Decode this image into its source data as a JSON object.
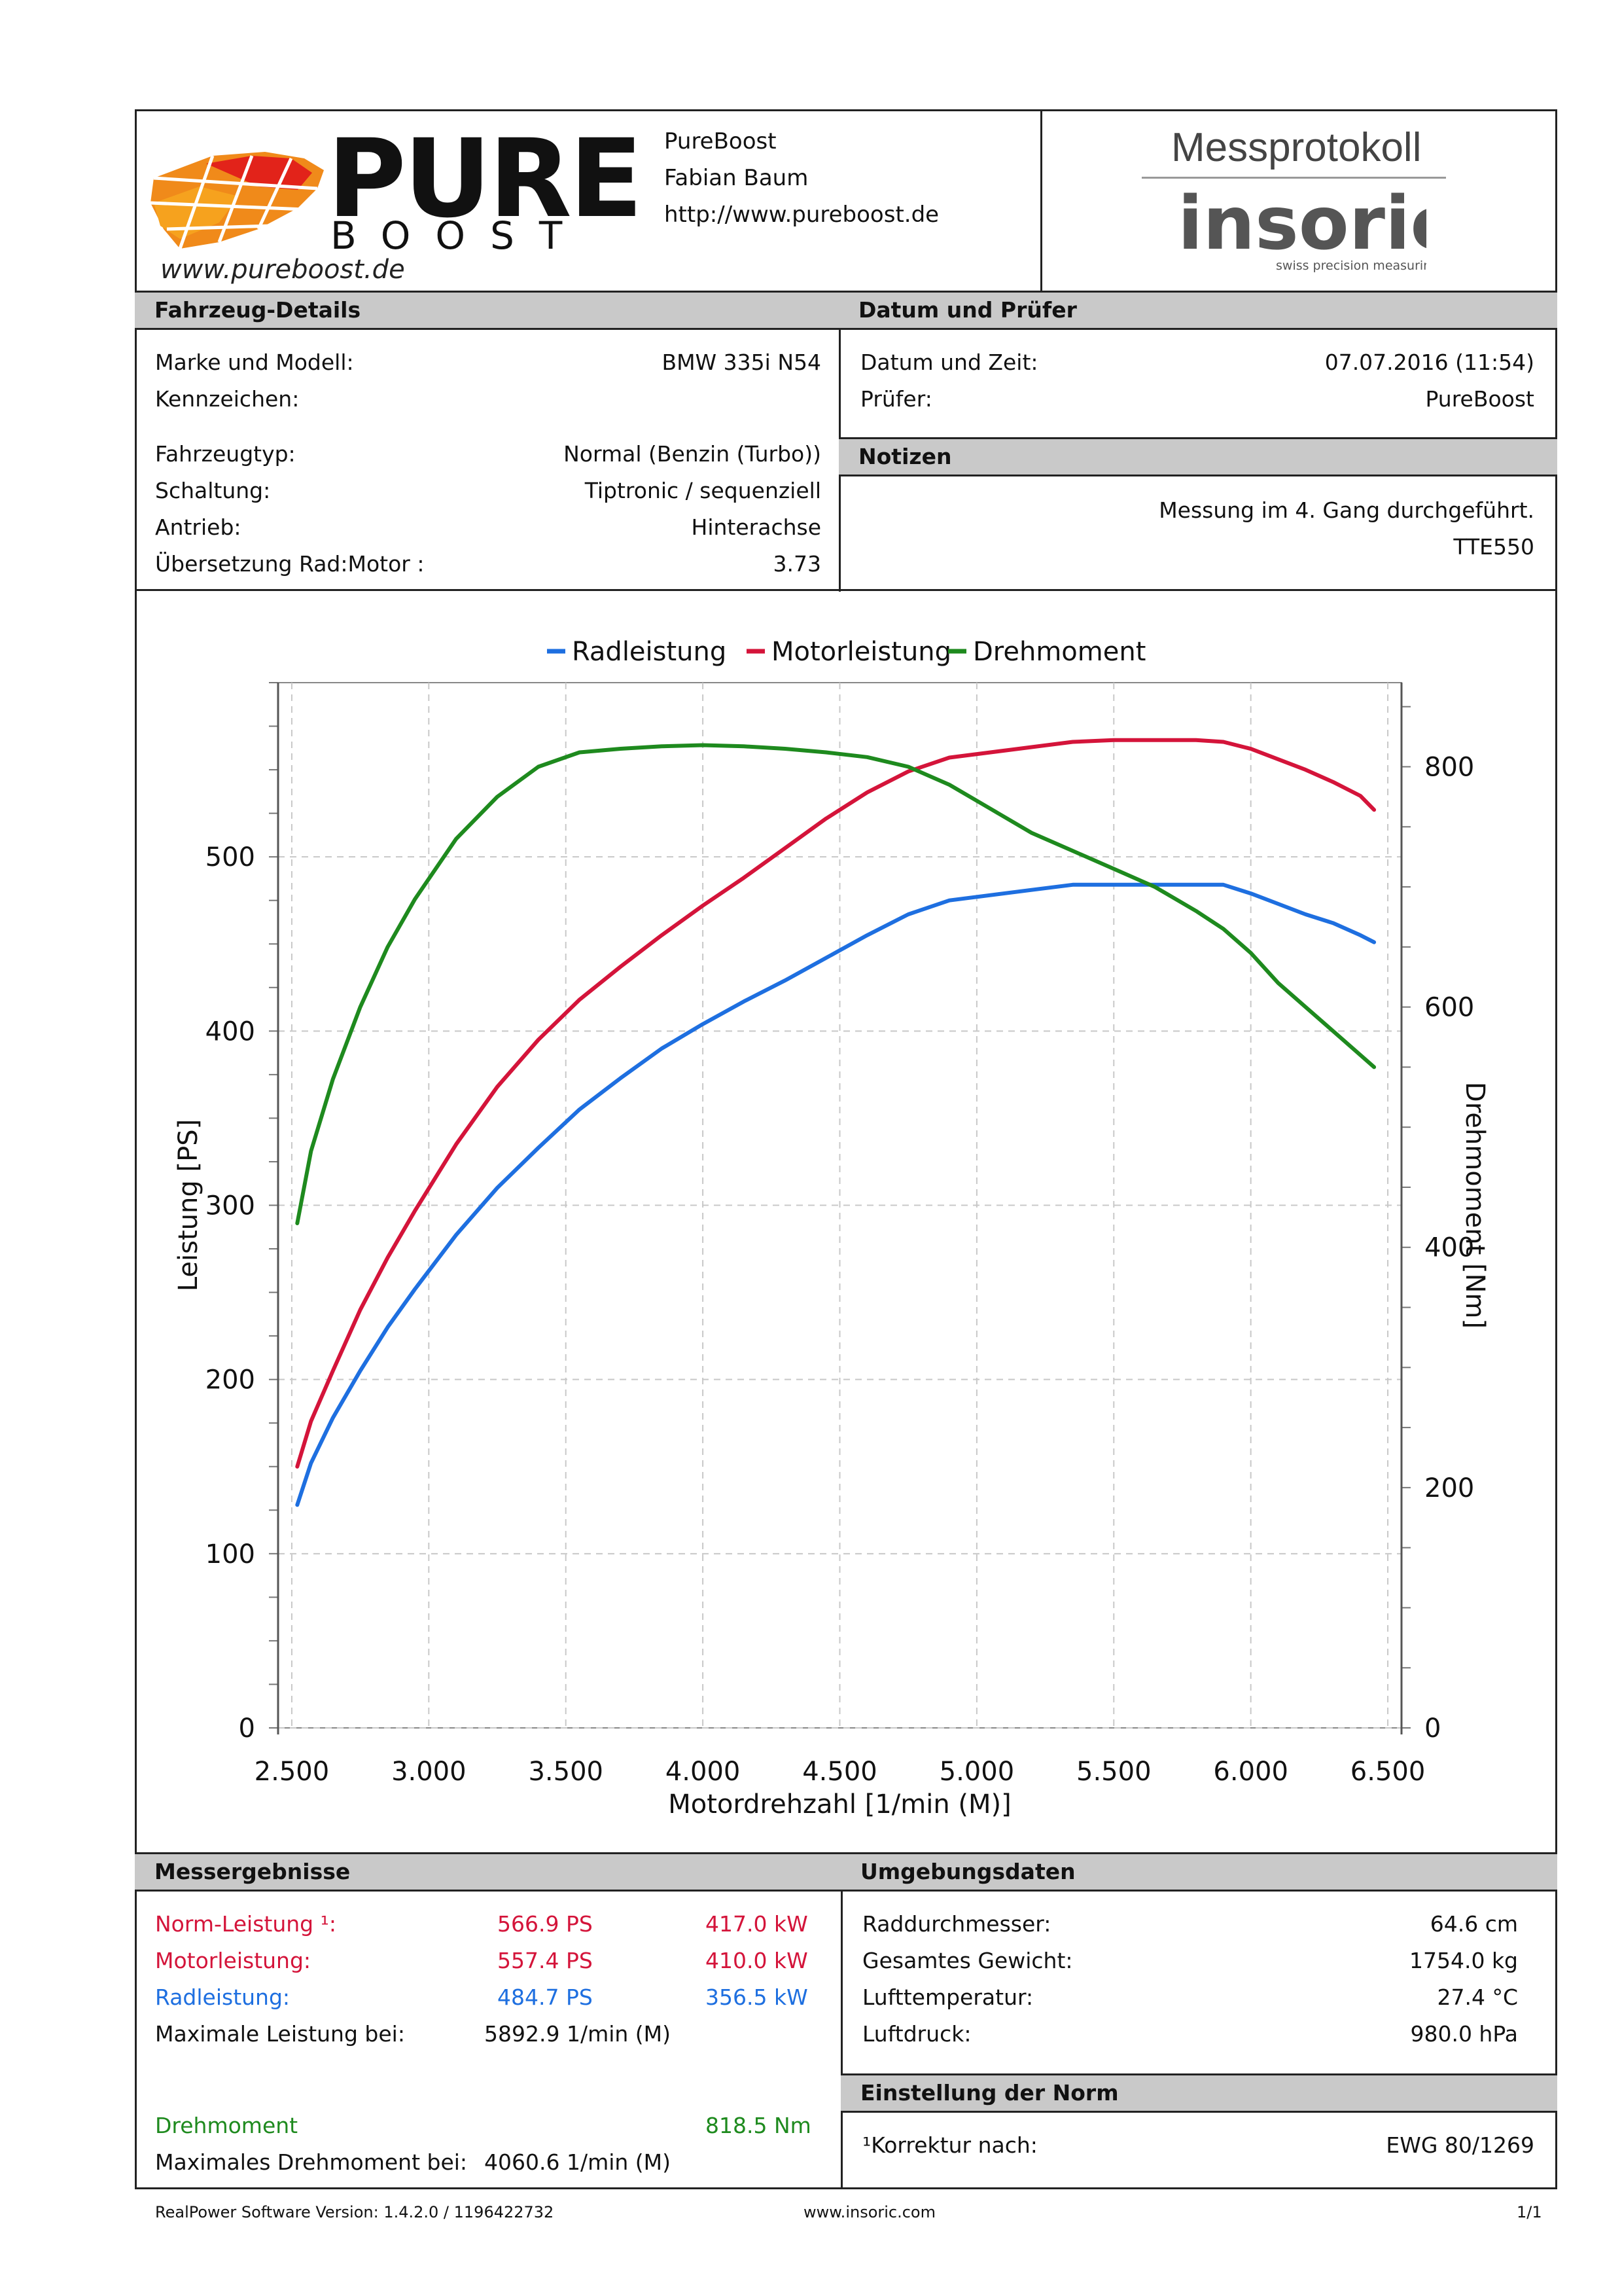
{
  "header": {
    "company_name": "PureBoost",
    "contact_name": "Fabian Baum",
    "website": "http://www.pureboost.de",
    "logo_word_1": "PURE",
    "logo_word_2": "BOOST",
    "logo_signature": "www.pureboost.de",
    "report_title": "Messprotokoll",
    "brand": "insoric",
    "brand_tagline": "swiss precision measuring"
  },
  "vehicle": {
    "title": "Fahrzeug-Details",
    "rows": [
      {
        "label": "Marke und Modell:",
        "value": "BMW 335i N54"
      },
      {
        "label": "Kennzeichen:",
        "value": ""
      },
      {
        "label": "Fahrzeugtyp:",
        "value": "Normal (Benzin (Turbo))"
      },
      {
        "label": "Schaltung:",
        "value": "Tiptronic / sequenziell"
      },
      {
        "label": "Antrieb:",
        "value": "Hinterachse"
      },
      {
        "label": "Übersetzung Rad:Motor :",
        "value": "3.73"
      }
    ]
  },
  "date_tester": {
    "title": "Datum und Prüfer",
    "rows": [
      {
        "label": "Datum und Zeit:",
        "value": "07.07.2016 (11:54)"
      },
      {
        "label": "Prüfer:",
        "value": "PureBoost"
      }
    ]
  },
  "notes": {
    "title": "Notizen",
    "lines": [
      "Messung im 4. Gang durchgeführt.",
      "TTE550"
    ]
  },
  "chart_data": {
    "type": "line",
    "title": "",
    "legend": [
      "Radleistung",
      "Motorleistung",
      "Drehmoment"
    ],
    "legend_position": "top-center",
    "xlabel": "Motordrehzahl [1/min (M)]",
    "ylabel_left": "Leistung [PS]",
    "ylabel_right": "Drehmoment [Nm]",
    "xlim": [
      2450,
      6550
    ],
    "ylim_left": [
      0,
      600
    ],
    "ylim_right": [
      0,
      870
    ],
    "x_ticks": [
      2500,
      3000,
      3500,
      4000,
      4500,
      5000,
      5500,
      6000,
      6500
    ],
    "x_tick_labels": [
      "2.500",
      "3.000",
      "3.500",
      "4.000",
      "4.500",
      "5.000",
      "5.500",
      "6.000",
      "6.500"
    ],
    "y_left_ticks": [
      0,
      100,
      200,
      300,
      400,
      500
    ],
    "y_right_ticks": [
      0,
      200,
      400,
      600,
      800
    ],
    "grid": true,
    "colors": {
      "Radleistung": "#1e6fe0",
      "Motorleistung": "#d4143a",
      "Drehmoment": "#1e8a1e"
    },
    "series": [
      {
        "name": "Radleistung",
        "axis": "left",
        "x": [
          2520,
          2570,
          2650,
          2750,
          2850,
          2950,
          3100,
          3250,
          3400,
          3550,
          3700,
          3850,
          4000,
          4150,
          4300,
          4450,
          4600,
          4750,
          4900,
          5050,
          5200,
          5350,
          5500,
          5650,
          5800,
          5900,
          6000,
          6100,
          6200,
          6300,
          6400,
          6450
        ],
        "y": [
          128,
          152,
          178,
          205,
          230,
          252,
          283,
          310,
          333,
          355,
          373,
          390,
          404,
          417,
          429,
          442,
          455,
          467,
          475,
          478,
          481,
          484,
          484,
          484,
          484,
          484,
          479,
          473,
          467,
          462,
          455,
          451
        ]
      },
      {
        "name": "Motorleistung",
        "axis": "left",
        "x": [
          2520,
          2570,
          2650,
          2750,
          2850,
          2950,
          3100,
          3250,
          3400,
          3550,
          3700,
          3850,
          4000,
          4150,
          4300,
          4450,
          4600,
          4750,
          4900,
          5050,
          5200,
          5350,
          5500,
          5650,
          5800,
          5900,
          6000,
          6100,
          6200,
          6300,
          6400,
          6450
        ],
        "y": [
          150,
          176,
          205,
          240,
          270,
          297,
          335,
          368,
          395,
          418,
          437,
          455,
          472,
          488,
          505,
          522,
          537,
          549,
          557,
          560,
          563,
          566,
          567,
          567,
          567,
          566,
          562,
          556,
          550,
          543,
          535,
          527
        ]
      },
      {
        "name": "Drehmoment",
        "axis": "right",
        "x": [
          2520,
          2570,
          2650,
          2750,
          2850,
          2950,
          3100,
          3250,
          3400,
          3550,
          3700,
          3850,
          4000,
          4150,
          4300,
          4450,
          4600,
          4750,
          4900,
          5050,
          5200,
          5350,
          5500,
          5650,
          5800,
          5900,
          6000,
          6100,
          6200,
          6300,
          6400,
          6450
        ],
        "y": [
          420,
          480,
          540,
          600,
          650,
          690,
          740,
          775,
          800,
          812,
          815,
          817,
          818,
          817,
          815,
          812,
          808,
          800,
          785,
          765,
          745,
          730,
          715,
          700,
          680,
          665,
          645,
          620,
          600,
          580,
          560,
          550
        ]
      }
    ]
  },
  "results": {
    "title": "Messergebnisse",
    "rows": [
      {
        "label": "Norm-Leistung ¹:",
        "ps": "566.9 PS",
        "kw": "417.0 kW",
        "color": "#d4143a"
      },
      {
        "label": "Motorleistung:",
        "ps": "557.4 PS",
        "kw": "410.0 kW",
        "color": "#d4143a"
      },
      {
        "label": "Radleistung:",
        "ps": "484.7 PS",
        "kw": "356.5 kW",
        "color": "#1e6fe0"
      }
    ],
    "max_power_label": "Maximale Leistung bei:",
    "max_power_rpm": "5892.9 1/min (M)",
    "torque_label": "Drehmoment",
    "torque_value": "818.5 Nm",
    "max_torque_label": "Maximales Drehmoment bei:",
    "max_torque_rpm": "4060.6 1/min (M)"
  },
  "environment": {
    "title": "Umgebungsdaten",
    "rows": [
      {
        "label": "Raddurchmesser:",
        "value": "64.6 cm"
      },
      {
        "label": "Gesamtes Gewicht:",
        "value": "1754.0 kg"
      },
      {
        "label": "Lufttemperatur:",
        "value": "27.4 °C"
      },
      {
        "label": "Luftdruck:",
        "value": "980.0 hPa"
      }
    ]
  },
  "norm": {
    "title": "Einstellung der Norm",
    "label": "¹Korrektur nach:",
    "value": "EWG 80/1269"
  },
  "footer": {
    "software": "RealPower Software Version: 1.4.2.0 / 1196422732",
    "site": "www.insoric.com",
    "page": "1/1"
  }
}
